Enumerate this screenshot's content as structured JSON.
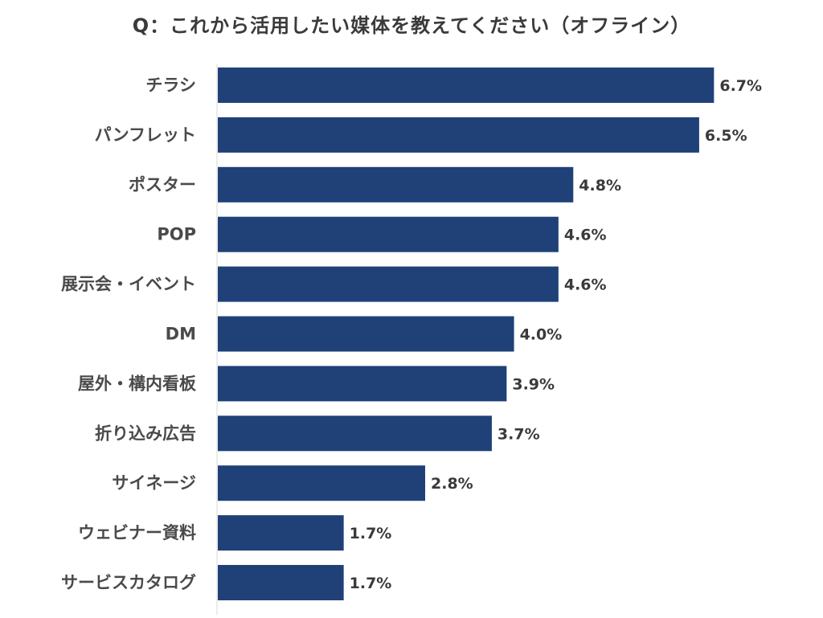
{
  "chart_data": {
    "type": "bar",
    "orientation": "horizontal",
    "title": "Q：これから活用したい媒体を教えてください（オフライン）",
    "categories": [
      "チラシ",
      "パンフレット",
      "ポスター",
      "POP",
      "展示会・イベント",
      "DM",
      "屋外・構内看板",
      "折り込み広告",
      "サイネージ",
      "ウェビナー資料",
      "サービスカタログ"
    ],
    "values": [
      6.7,
      6.5,
      4.8,
      4.6,
      4.6,
      4.0,
      3.9,
      3.7,
      2.8,
      1.7,
      1.7
    ],
    "value_labels": [
      "6.7%",
      "6.5%",
      "4.8%",
      "4.6%",
      "4.6%",
      "4.0%",
      "3.9%",
      "3.7%",
      "2.8%",
      "1.7%",
      "1.7%"
    ],
    "unit": "%",
    "xlim": [
      0,
      7
    ],
    "grid": false,
    "legend": "none",
    "bar_color": "#1f4178"
  }
}
